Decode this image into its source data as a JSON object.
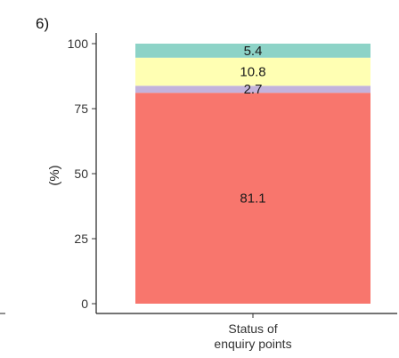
{
  "panel_label": "6)",
  "chart_data": {
    "type": "bar",
    "stacked": true,
    "categories": [
      "Status of\nenquiry points"
    ],
    "x_tick_lines": [
      "Status of",
      "enquiry points"
    ],
    "series": [
      {
        "name": "",
        "values": [
          81.1
        ],
        "color": "#F8766D",
        "label": "81.1"
      },
      {
        "name": "",
        "values": [
          2.7
        ],
        "color": "#C3B3DC",
        "label": "2.7"
      },
      {
        "name": "",
        "values": [
          10.8
        ],
        "color": "#FFFFB3",
        "label": "10.8"
      },
      {
        "name": "",
        "values": [
          5.4
        ],
        "color": "#8DD3C7",
        "label": "5.4"
      }
    ],
    "ylabel": "(%)",
    "xlabel": "",
    "ylim": [
      0,
      100
    ],
    "yticks": [
      0,
      25,
      50,
      75,
      100
    ],
    "grid": false,
    "legend": "none"
  }
}
